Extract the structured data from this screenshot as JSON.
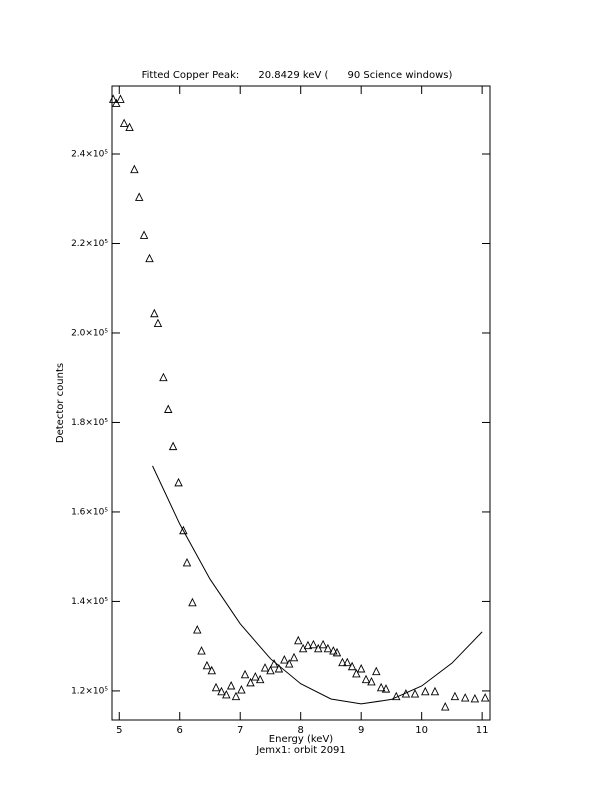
{
  "chart_data": {
    "type": "scatter",
    "title": "Fitted Copper Peak:      20.8429 keV (      90 Science windows)",
    "x_label": "Energy (keV)",
    "subtitle": "Jemx1: orbit 2091",
    "y_label": "Detector counts",
    "color": "#000000",
    "xlim": [
      4.88,
      11.13
    ],
    "ylim": [
      113500,
      255200
    ],
    "xticks": [
      5,
      6,
      7,
      8,
      9,
      10,
      11
    ],
    "yticks": [
      {
        "value": 120000,
        "label": "1.2×10⁵"
      },
      {
        "value": 140000,
        "label": "1.4×10⁵"
      },
      {
        "value": 160000,
        "label": "1.6×10⁵"
      },
      {
        "value": 180000,
        "label": "1.8×10⁵"
      },
      {
        "value": 200000,
        "label": "2.0×10⁵"
      },
      {
        "value": 220000,
        "label": "2.2×10⁵"
      },
      {
        "value": 240000,
        "label": "2.4×10⁵"
      }
    ],
    "series": [
      {
        "marker": "triangle",
        "x": [
          4.9,
          4.95,
          5.02,
          5.08,
          5.17,
          5.25,
          5.33,
          5.41,
          5.5,
          5.58,
          5.64,
          5.73,
          5.81,
          5.89,
          5.98,
          6.06,
          6.12,
          6.21,
          6.29,
          6.36,
          6.45,
          6.53,
          6.6,
          6.69,
          6.77,
          6.85,
          6.93,
          7.02,
          7.08,
          7.17,
          7.25,
          7.33,
          7.41,
          7.5,
          7.56,
          7.64,
          7.73,
          7.81,
          7.89,
          7.96,
          8.04,
          8.12,
          8.21,
          8.29,
          8.37,
          8.45,
          8.54,
          8.6,
          8.69,
          8.77,
          8.85,
          8.92,
          9.0,
          9.08,
          9.17,
          9.25,
          9.33,
          9.41,
          9.58,
          9.74,
          9.89,
          10.06,
          10.22,
          10.39,
          10.55,
          10.72,
          10.88,
          11.05
        ],
        "values": [
          252200,
          251300,
          252200,
          246800,
          245900,
          236500,
          230300,
          221800,
          216600,
          204300,
          202100,
          190000,
          182900,
          174600,
          166500,
          155800,
          148600,
          139700,
          133600,
          128900,
          125600,
          124500,
          120700,
          119800,
          119100,
          121100,
          118700,
          120200,
          123600,
          121800,
          123100,
          122500,
          125100,
          124500,
          126000,
          124900,
          126900,
          126000,
          127400,
          131200,
          129400,
          130100,
          130300,
          129400,
          130300,
          129400,
          128900,
          128500,
          126300,
          126300,
          125400,
          123800,
          124900,
          122500,
          122000,
          124300,
          120700,
          120400,
          118700,
          119300,
          119300,
          119800,
          119800,
          116400,
          118700,
          118400,
          118200,
          118400
        ]
      },
      {
        "marker": "line",
        "x": [
          5.55,
          6.0,
          6.5,
          7.0,
          7.5,
          8.0,
          8.5,
          9.0,
          9.5,
          10.0,
          10.5,
          11.0
        ],
        "values": [
          170300,
          157300,
          145000,
          135000,
          127200,
          121600,
          118200,
          117100,
          118100,
          121100,
          126200,
          133200
        ]
      }
    ]
  }
}
